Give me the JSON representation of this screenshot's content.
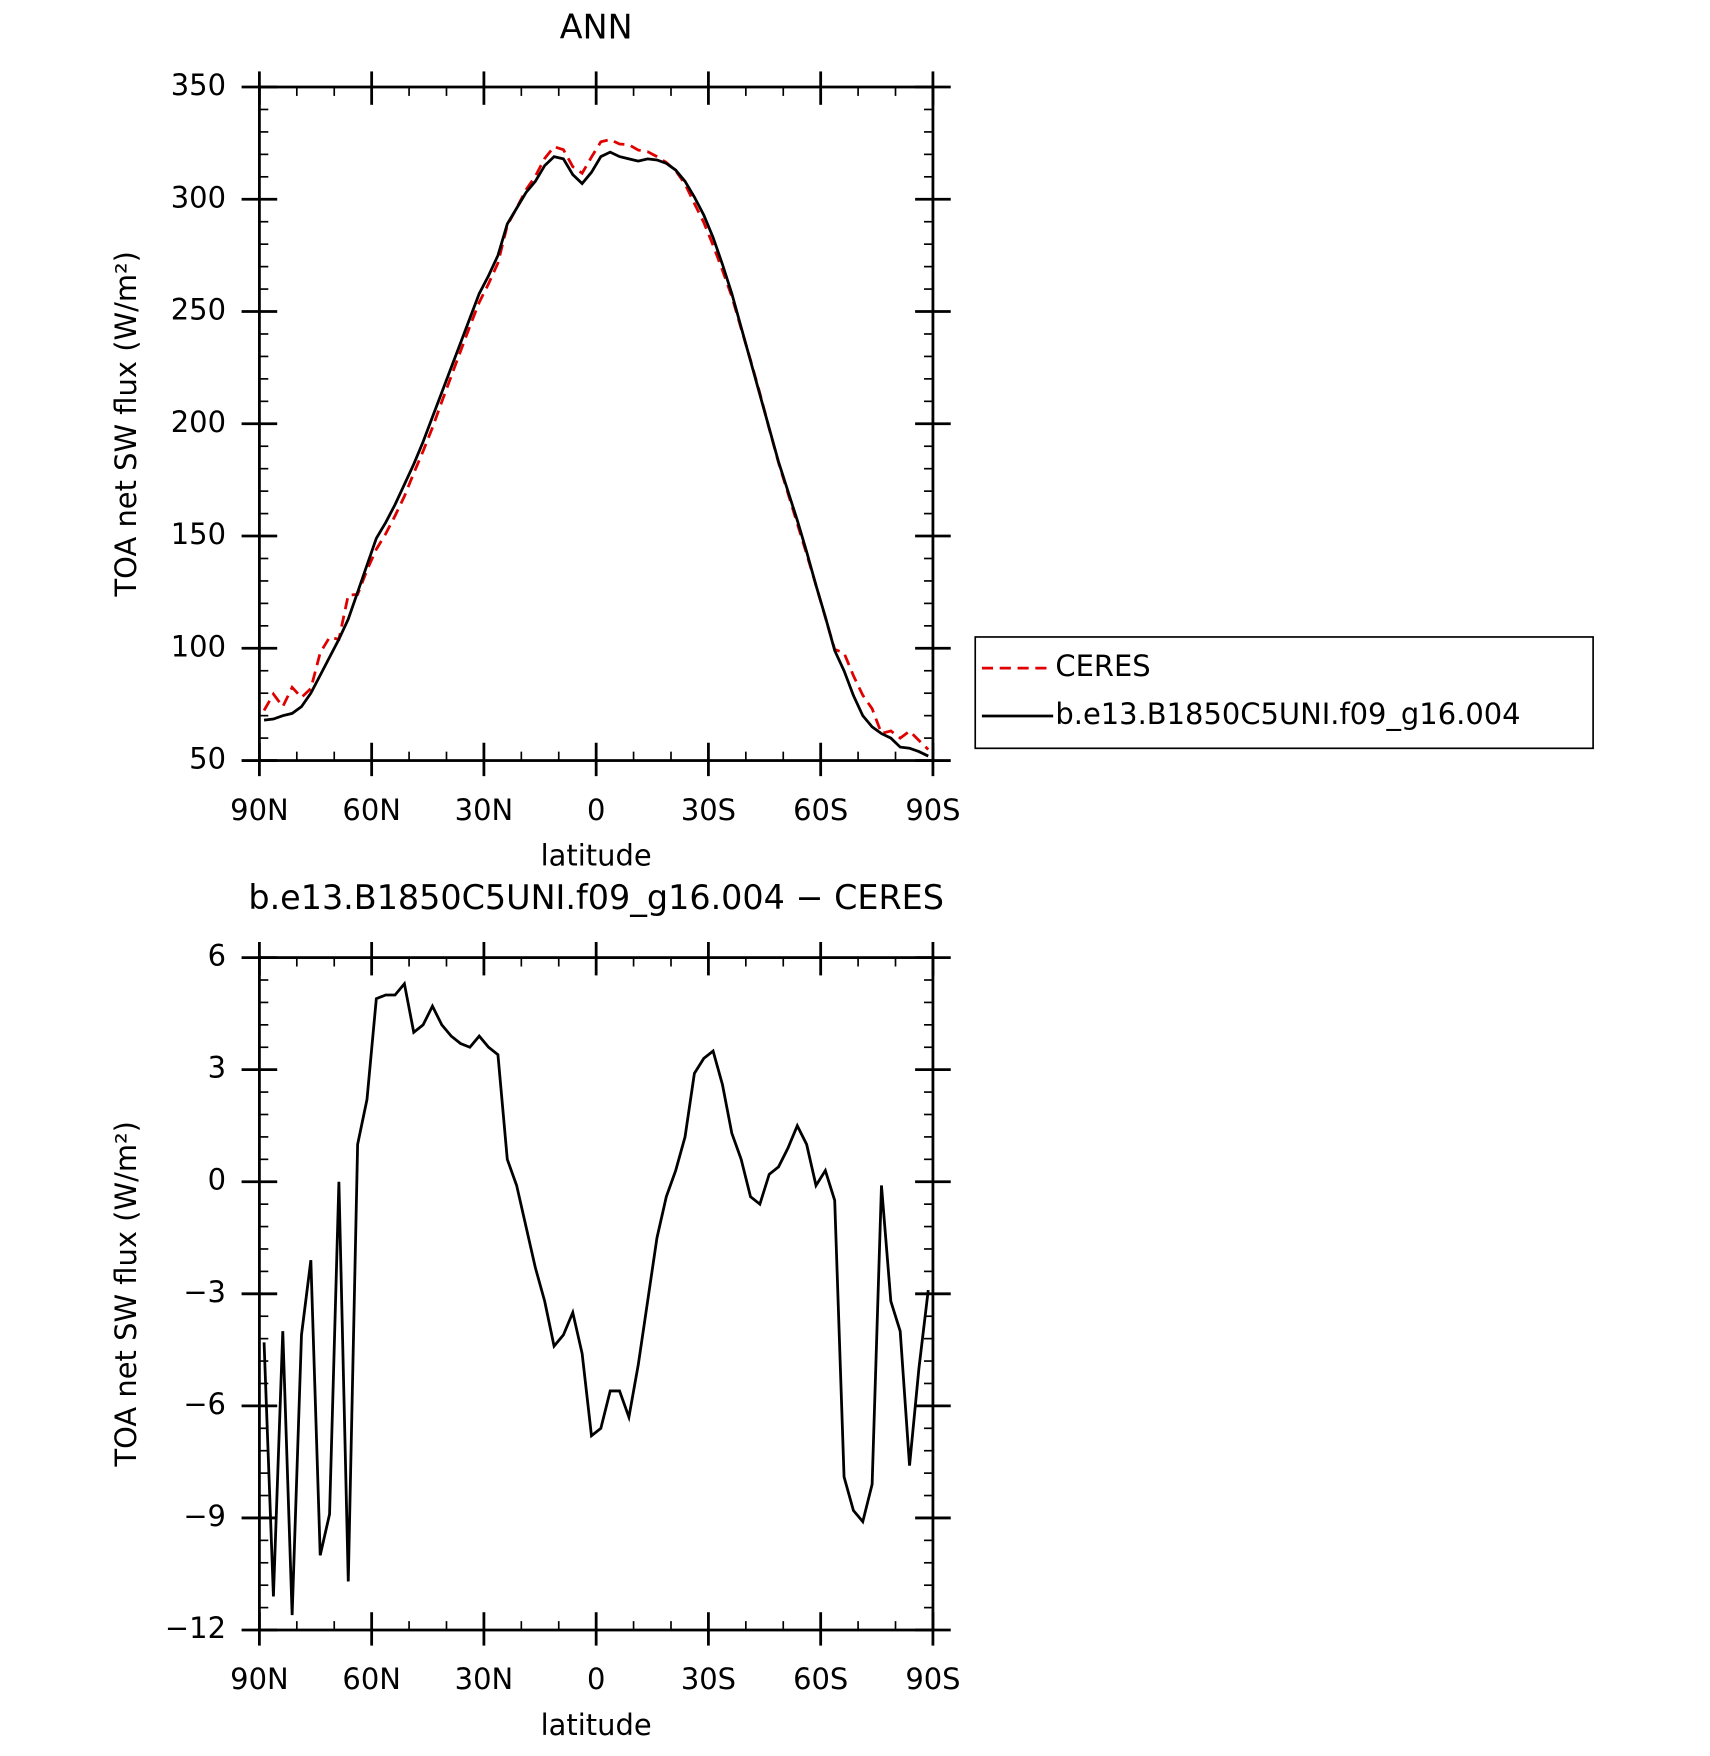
{
  "chart_data": [
    {
      "type": "line",
      "title": "ANN",
      "xlabel": "latitude",
      "ylabel": "TOA net SW flux (W/m²)",
      "x": [
        88.75,
        86.25,
        83.75,
        81.25,
        78.75,
        76.25,
        73.75,
        71.25,
        68.75,
        66.25,
        63.75,
        61.25,
        58.75,
        56.25,
        53.75,
        51.25,
        48.75,
        46.25,
        43.75,
        41.25,
        38.75,
        36.25,
        33.75,
        31.25,
        28.75,
        26.25,
        23.75,
        21.25,
        18.75,
        16.25,
        13.75,
        11.25,
        8.75,
        6.25,
        3.75,
        1.25,
        -1.25,
        -3.75,
        -6.25,
        -8.75,
        -11.25,
        -13.75,
        -16.25,
        -18.75,
        -21.25,
        -23.75,
        -26.25,
        -28.75,
        -31.25,
        -33.75,
        -36.25,
        -38.75,
        -41.25,
        -43.75,
        -46.25,
        -48.75,
        -51.25,
        -53.75,
        -56.25,
        -58.75,
        -61.25,
        -63.75,
        -66.25,
        -68.75,
        -71.25,
        -73.75,
        -76.25,
        -78.75,
        -81.25,
        -83.75,
        -86.25,
        -88.75
      ],
      "series": [
        {
          "name": "CERES",
          "color": "#e00000",
          "dash": true,
          "values": [
            72.3,
            79.6,
            74.0,
            82.6,
            78.1,
            82.1,
            98.0,
            104.9,
            104.0,
            123.7,
            124.0,
            134.8,
            144.1,
            151.0,
            159.0,
            167.7,
            178.0,
            187.8,
            198.3,
            209.8,
            221.1,
            232.3,
            243.4,
            254.1,
            262.4,
            271.6,
            288.4,
            296.1,
            304.2,
            310.3,
            318.2,
            323.4,
            322.1,
            314.5,
            311.6,
            318.8,
            325.6,
            326.6,
            324.6,
            324.3,
            321.9,
            321.2,
            319.0,
            316.4,
            312.7,
            306.8,
            298.1,
            289.7,
            279.5,
            268.4,
            256.7,
            242.4,
            228.4,
            213.6,
            197.8,
            182.6,
            169.1,
            155.5,
            142.0,
            128.1,
            113.7,
            99.5,
            97.9,
            87.8,
            79.1,
            73.1,
            62.1,
            63.2,
            60.0,
            63.1,
            59.0,
            54.9
          ]
        },
        {
          "name": "b.e13.B1850C5UNI.f09_g16.004",
          "color": "#000000",
          "dash": false,
          "values": [
            68,
            68.5,
            70,
            71,
            74,
            80,
            88,
            96,
            104,
            113,
            125,
            137,
            149,
            156,
            164,
            173,
            182,
            192,
            203,
            214,
            225,
            236,
            247,
            258,
            266,
            275,
            289,
            296,
            303,
            308,
            315,
            319,
            318,
            311,
            307,
            312,
            319,
            321,
            319,
            318,
            317,
            318,
            317.5,
            316,
            313,
            308,
            301,
            293,
            283,
            271,
            258,
            243,
            228,
            213,
            198,
            183,
            170,
            157,
            143,
            128,
            114,
            99,
            90,
            79,
            70,
            65,
            62,
            60,
            56,
            55.5,
            54,
            52
          ]
        }
      ],
      "xlim": [
        90,
        -90
      ],
      "xticks": [
        {
          "value": 90,
          "label": "90N"
        },
        {
          "value": 60,
          "label": "60N"
        },
        {
          "value": 30,
          "label": "30N"
        },
        0,
        {
          "value": -30,
          "label": "30S"
        },
        {
          "value": -60,
          "label": "60S"
        },
        {
          "value": -90,
          "label": "90S"
        }
      ],
      "ylim": [
        50,
        350
      ],
      "yticks": [
        50,
        100,
        150,
        200,
        250,
        300,
        350
      ],
      "legend": "right"
    },
    {
      "type": "line",
      "title": "b.e13.B1850C5UNI.f09_g16.004 − CERES",
      "xlabel": "latitude",
      "ylabel": "TOA net SW flux (W/m²)",
      "x": [
        88.75,
        86.25,
        83.75,
        81.25,
        78.75,
        76.25,
        73.75,
        71.25,
        68.75,
        66.25,
        63.75,
        61.25,
        58.75,
        56.25,
        53.75,
        51.25,
        48.75,
        46.25,
        43.75,
        41.25,
        38.75,
        36.25,
        33.75,
        31.25,
        28.75,
        26.25,
        23.75,
        21.25,
        18.75,
        16.25,
        13.75,
        11.25,
        8.75,
        6.25,
        3.75,
        1.25,
        -1.25,
        -3.75,
        -6.25,
        -8.75,
        -11.25,
        -13.75,
        -16.25,
        -18.75,
        -21.25,
        -23.75,
        -26.25,
        -28.75,
        -31.25,
        -33.75,
        -36.25,
        -38.75,
        -41.25,
        -43.75,
        -46.25,
        -48.75,
        -51.25,
        -53.75,
        -56.25,
        -58.75,
        -61.25,
        -63.75,
        -66.25,
        -68.75,
        -71.25,
        -73.75,
        -76.25,
        -78.75,
        -81.25,
        -83.75,
        -86.25,
        -88.75
      ],
      "series": [
        {
          "color": "#000000",
          "dash": false,
          "values": [
            -4.3,
            -11.1,
            -4.0,
            -11.6,
            -4.1,
            -2.1,
            -10.0,
            -8.9,
            0.0,
            -10.7,
            1.0,
            2.2,
            4.9,
            5.0,
            5.0,
            5.3,
            4.0,
            4.2,
            4.7,
            4.2,
            3.9,
            3.7,
            3.6,
            3.9,
            3.6,
            3.4,
            0.6,
            -0.1,
            -1.2,
            -2.3,
            -3.2,
            -4.4,
            -4.1,
            -3.5,
            -4.6,
            -6.8,
            -6.6,
            -5.6,
            -5.6,
            -6.3,
            -4.9,
            -3.2,
            -1.5,
            -0.4,
            0.3,
            1.2,
            2.9,
            3.3,
            3.5,
            2.6,
            1.3,
            0.6,
            -0.4,
            -0.6,
            0.2,
            0.4,
            0.9,
            1.5,
            1.0,
            -0.1,
            0.3,
            -0.5,
            -7.9,
            -8.8,
            -9.1,
            -8.1,
            -0.1,
            -3.2,
            -4.0,
            -7.6,
            -5.0,
            -2.9
          ]
        }
      ],
      "xlim": [
        90,
        -90
      ],
      "xticks": [
        {
          "value": 90,
          "label": "90N"
        },
        {
          "value": 60,
          "label": "60N"
        },
        {
          "value": 30,
          "label": "30N"
        },
        0,
        {
          "value": -30,
          "label": "30S"
        },
        {
          "value": -60,
          "label": "60S"
        },
        {
          "value": -90,
          "label": "90S"
        }
      ],
      "ylim": [
        -12,
        6
      ],
      "yticks": [
        {
          "value": -12,
          "label": "−12"
        },
        {
          "value": -9,
          "label": "−9"
        },
        {
          "value": -6,
          "label": "−6"
        },
        {
          "value": -3,
          "label": "−3"
        },
        0,
        3,
        6
      ]
    }
  ]
}
